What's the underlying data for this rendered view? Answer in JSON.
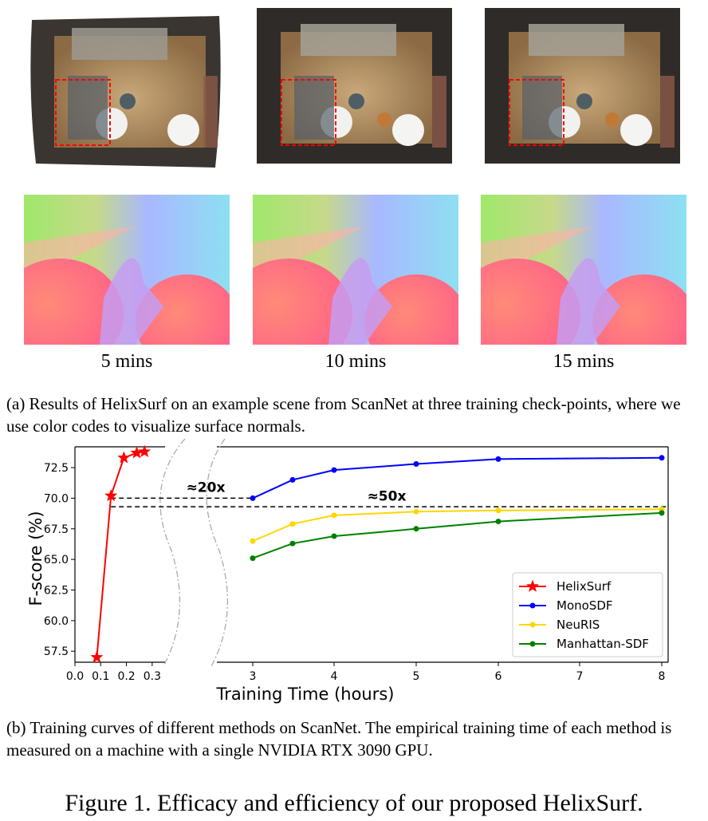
{
  "panels": [
    {
      "time_label": "5 mins"
    },
    {
      "time_label": "10 mins"
    },
    {
      "time_label": "15 mins"
    }
  ],
  "caption_a": "(a) Results of HelixSurf on an example scene from ScanNet at three training check-points, where we use color codes to visualize surface normals.",
  "caption_b": "(b) Training curves of different methods on ScanNet. The empirical training time of each method is measured on a machine with a single NVIDIA RTX 3090 GPU.",
  "figure_title": "Figure 1. Efficacy and efficiency of our proposed HelixSurf.",
  "chart_data": {
    "type": "line",
    "xlabel": "Training Time (hours)",
    "ylabel": "F-score (%)",
    "ylim": [
      56.6,
      74.2
    ],
    "yticks": [
      "57.5",
      "60.0",
      "62.5",
      "65.0",
      "67.5",
      "70.0",
      "72.5"
    ],
    "xticks_left": [
      "0.0",
      "0.1",
      "0.2",
      "0.3"
    ],
    "xticks_right": [
      "3",
      "4",
      "5",
      "6",
      "7",
      "8"
    ],
    "broken_axis": true,
    "legend_position": "lower right",
    "annotations": [
      "≈20x",
      "≈50x"
    ],
    "series": [
      {
        "name": "HelixSurf",
        "color": "#ff0000",
        "marker": "star",
        "x": [
          0.085,
          0.14,
          0.19,
          0.24,
          0.27
        ],
        "y": [
          57.0,
          70.2,
          73.3,
          73.7,
          73.8
        ]
      },
      {
        "name": "MonoSDF",
        "color": "#0000ff",
        "marker": "circle",
        "x": [
          3,
          3.5,
          4,
          5,
          6,
          8
        ],
        "y": [
          70.0,
          71.5,
          72.3,
          72.8,
          73.2,
          73.3
        ]
      },
      {
        "name": "NeuRIS",
        "color": "#ffd700",
        "marker": "circle",
        "x": [
          3,
          3.5,
          4,
          5,
          6,
          8
        ],
        "y": [
          66.5,
          67.9,
          68.6,
          68.9,
          69.0,
          69.1
        ]
      },
      {
        "name": "Manhattan-SDF",
        "color": "#008000",
        "marker": "circle",
        "x": [
          3,
          3.5,
          4,
          5,
          6,
          8
        ],
        "y": [
          65.1,
          66.3,
          66.9,
          67.5,
          68.1,
          68.8
        ]
      }
    ]
  }
}
